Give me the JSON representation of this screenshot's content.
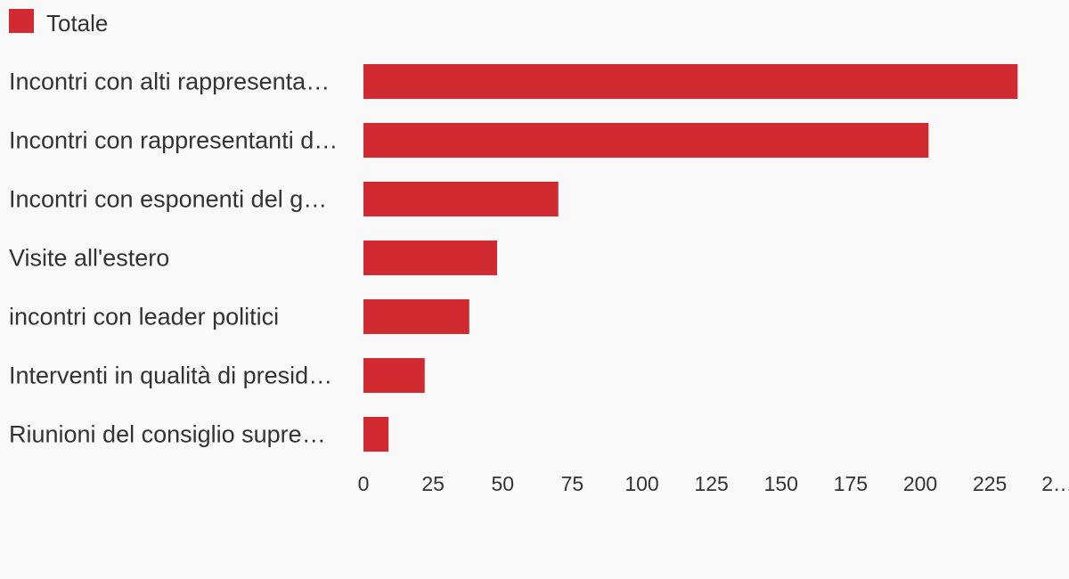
{
  "legend": {
    "label": "Totale",
    "color": "#d12b31"
  },
  "chart_data": {
    "type": "bar",
    "orientation": "horizontal",
    "categories": [
      "Incontri con alti rappresenta…",
      "Incontri con rappresentanti d…",
      "Incontri con esponenti del g…",
      "Visite all'estero",
      "incontri con leader politici",
      "Interventi in qualità di presid…",
      "Riunioni del consiglio supre…"
    ],
    "series": [
      {
        "name": "Totale",
        "color": "#d12b31",
        "values": [
          235,
          203,
          70,
          48,
          38,
          22,
          9
        ]
      }
    ],
    "xlim": [
      0,
      250
    ],
    "x_ticks": [
      "0",
      "25",
      "50",
      "75",
      "100",
      "125",
      "150",
      "175",
      "200",
      "225",
      "2…"
    ],
    "grid": false,
    "legend_position": "top-left"
  }
}
